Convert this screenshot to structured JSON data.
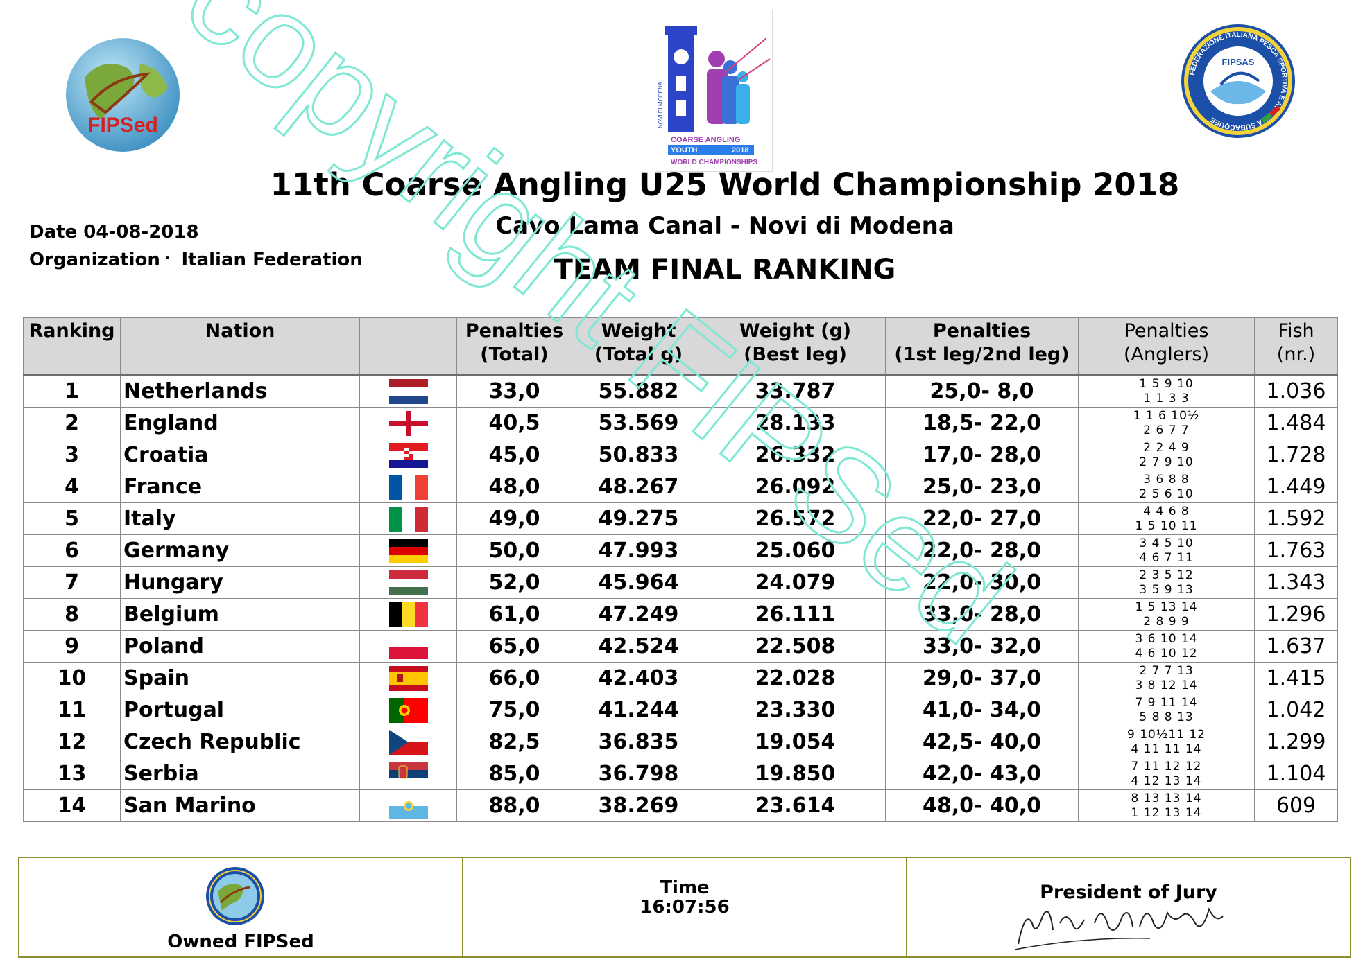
{
  "header": {
    "title": "11th Coarse Angling U25 World Championship 2018",
    "subtitle": "Cavo Lama Canal - Novi di Modena",
    "heading": "TEAM FINAL RANKING",
    "date_label": "Date",
    "date_value": "04-08-2018",
    "org_label": "Organization",
    "org_value": "Italian Federation"
  },
  "logos": {
    "left_text": "FIPSed",
    "center_lines": [
      "NOVI DI MODENA",
      "COARSE ANGLING",
      "YOUTH",
      "2018",
      "WORLD CHAMPIONSHIPS"
    ],
    "right_ring": "FEDERAZIONE ITALIANA PESCA SPORTIVA E ATTIVITÀ SUBACQUEE",
    "right_center": "FIPSAS"
  },
  "table": {
    "columns": [
      "Ranking",
      "Nation",
      "",
      "Penalties (Total)",
      "Weight (Total g)",
      "Weight (g) (Best leg)",
      "Penalties (1st leg/2nd leg)",
      "Penalties (Anglers)",
      "Fish (nr.)"
    ],
    "col_lines": [
      [
        "Ranking",
        ""
      ],
      [
        "Nation",
        ""
      ],
      [
        "",
        ""
      ],
      [
        "Penalties",
        "(Total)"
      ],
      [
        "Weight",
        "(Total g)"
      ],
      [
        "Weight (g)",
        "(Best leg)"
      ],
      [
        "Penalties",
        "(1st leg/2nd leg)"
      ],
      [
        "Penalties",
        "(Anglers)"
      ],
      [
        "Fish",
        "(nr.)"
      ]
    ],
    "rows": [
      {
        "rank": "1",
        "nation": "Netherlands",
        "flag": "netherlands",
        "pen_total": "33,0",
        "weight_total": "55.882",
        "best_leg": "33.787",
        "legs": "25,0- 8,0",
        "anglers_top": "1 5 9 10",
        "anglers_bot": "1 1 3 3",
        "fish": "1.036"
      },
      {
        "rank": "2",
        "nation": "England",
        "flag": "england",
        "pen_total": "40,5",
        "weight_total": "53.569",
        "best_leg": "28.133",
        "legs": "18,5- 22,0",
        "anglers_top": "1 1 6 10½",
        "anglers_bot": "2 6 7 7",
        "fish": "1.484"
      },
      {
        "rank": "3",
        "nation": "Croatia",
        "flag": "croatia",
        "pen_total": "45,0",
        "weight_total": "50.833",
        "best_leg": "26.332",
        "legs": "17,0- 28,0",
        "anglers_top": "2 2 4 9",
        "anglers_bot": "2 7 9 10",
        "fish": "1.728"
      },
      {
        "rank": "4",
        "nation": "France",
        "flag": "france",
        "pen_total": "48,0",
        "weight_total": "48.267",
        "best_leg": "26.092",
        "legs": "25,0- 23,0",
        "anglers_top": "3 6 8 8",
        "anglers_bot": "2 5 6 10",
        "fish": "1.449"
      },
      {
        "rank": "5",
        "nation": "Italy",
        "flag": "italy",
        "pen_total": "49,0",
        "weight_total": "49.275",
        "best_leg": "26.572",
        "legs": "22,0- 27,0",
        "anglers_top": "4 4 6 8",
        "anglers_bot": "1 5 10 11",
        "fish": "1.592"
      },
      {
        "rank": "6",
        "nation": "Germany",
        "flag": "germany",
        "pen_total": "50,0",
        "weight_total": "47.993",
        "best_leg": "25.060",
        "legs": "22,0- 28,0",
        "anglers_top": "3 4 5 10",
        "anglers_bot": "4 6 7 11",
        "fish": "1.763"
      },
      {
        "rank": "7",
        "nation": "Hungary",
        "flag": "hungary",
        "pen_total": "52,0",
        "weight_total": "45.964",
        "best_leg": "24.079",
        "legs": "22,0- 30,0",
        "anglers_top": "2 3 5 12",
        "anglers_bot": "3 5 9 13",
        "fish": "1.343"
      },
      {
        "rank": "8",
        "nation": "Belgium",
        "flag": "belgium",
        "pen_total": "61,0",
        "weight_total": "47.249",
        "best_leg": "26.111",
        "legs": "33,0- 28,0",
        "anglers_top": "1 5 13 14",
        "anglers_bot": "2 8 9 9",
        "fish": "1.296"
      },
      {
        "rank": "9",
        "nation": "Poland",
        "flag": "poland",
        "pen_total": "65,0",
        "weight_total": "42.524",
        "best_leg": "22.508",
        "legs": "33,0- 32,0",
        "anglers_top": "3 6 10 14",
        "anglers_bot": "4 6 10 12",
        "fish": "1.637"
      },
      {
        "rank": "10",
        "nation": "Spain",
        "flag": "spain",
        "pen_total": "66,0",
        "weight_total": "42.403",
        "best_leg": "22.028",
        "legs": "29,0- 37,0",
        "anglers_top": "2 7 7 13",
        "anglers_bot": "3 8 12 14",
        "fish": "1.415"
      },
      {
        "rank": "11",
        "nation": "Portugal",
        "flag": "portugal",
        "pen_total": "75,0",
        "weight_total": "41.244",
        "best_leg": "23.330",
        "legs": "41,0- 34,0",
        "anglers_top": "7 9 11 14",
        "anglers_bot": "5 8 8 13",
        "fish": "1.042"
      },
      {
        "rank": "12",
        "nation": "Czech Republic",
        "flag": "czech",
        "pen_total": "82,5",
        "weight_total": "36.835",
        "best_leg": "19.054",
        "legs": "42,5- 40,0",
        "anglers_top": "9 10½11 12",
        "anglers_bot": "4 11 11 14",
        "fish": "1.299"
      },
      {
        "rank": "13",
        "nation": "Serbia",
        "flag": "serbia",
        "pen_total": "85,0",
        "weight_total": "36.798",
        "best_leg": "19.850",
        "legs": "42,0- 43,0",
        "anglers_top": "7 11 12 12",
        "anglers_bot": "4 12 13 14",
        "fish": "1.104"
      },
      {
        "rank": "14",
        "nation": "San Marino",
        "flag": "sanmarino",
        "pen_total": "88,0",
        "weight_total": "38.269",
        "best_leg": "23.614",
        "legs": "48,0- 40,0",
        "anglers_top": "8 13 13 14",
        "anglers_bot": "1 12 13 14",
        "fish": "609"
      }
    ]
  },
  "footer": {
    "owned_label": "Owned FIPSed",
    "time_label": "Time",
    "time_value": "16:07:56",
    "jury_label": "President of Jury"
  },
  "watermark": {
    "text": "copyright FIPSed",
    "color": "#7ee8d4"
  },
  "colors": {
    "header_bg": "#d8d8d8",
    "footer_border": "#8c8c30"
  }
}
